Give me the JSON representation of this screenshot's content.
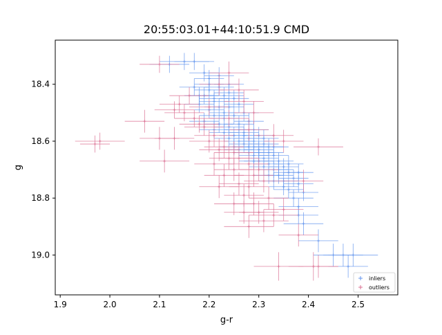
{
  "chart_data": {
    "type": "scatter",
    "title": "20:55:03.01+44:10:51.9 CMD",
    "xlabel": "g-r",
    "ylabel": "g",
    "xlim": [
      1.89,
      2.58
    ],
    "ylim": [
      19.14,
      18.245
    ],
    "y_inverted": true,
    "grid": false,
    "legend_placement": "lower right",
    "x_ticks": [
      1.9,
      2.0,
      2.1,
      2.2,
      2.3,
      2.4,
      2.5
    ],
    "x_tick_labels": [
      "1.9",
      "2.0",
      "2.1",
      "2.2",
      "2.3",
      "2.4",
      "2.5"
    ],
    "y_ticks": [
      18.4,
      18.6,
      18.8,
      19.0
    ],
    "y_tick_labels": [
      "18.4",
      "18.6",
      "18.8",
      "19.0"
    ],
    "series": [
      {
        "name": "inliers",
        "color": "#6495ED",
        "marker": "+",
        "errorbars": true,
        "points": [
          [
            2.15,
            18.32,
            0.05,
            0.03
          ],
          [
            2.17,
            18.32,
            0.04,
            0.03
          ],
          [
            2.12,
            18.33,
            0.04,
            0.03
          ],
          [
            2.19,
            18.36,
            0.03,
            0.03
          ],
          [
            2.2,
            18.38,
            0.03,
            0.03
          ],
          [
            2.22,
            18.37,
            0.03,
            0.03
          ],
          [
            2.17,
            18.41,
            0.03,
            0.03
          ],
          [
            2.2,
            18.42,
            0.03,
            0.03
          ],
          [
            2.22,
            18.41,
            0.03,
            0.03
          ],
          [
            2.24,
            18.4,
            0.03,
            0.03
          ],
          [
            2.19,
            18.44,
            0.03,
            0.03
          ],
          [
            2.21,
            18.45,
            0.03,
            0.03
          ],
          [
            2.23,
            18.44,
            0.04,
            0.03
          ],
          [
            2.25,
            18.45,
            0.03,
            0.03
          ],
          [
            2.18,
            18.47,
            0.03,
            0.03
          ],
          [
            2.22,
            18.48,
            0.03,
            0.03
          ],
          [
            2.2,
            18.49,
            0.03,
            0.03
          ],
          [
            2.24,
            18.48,
            0.03,
            0.03
          ],
          [
            2.26,
            18.47,
            0.03,
            0.03
          ],
          [
            2.21,
            18.51,
            0.03,
            0.03
          ],
          [
            2.23,
            18.52,
            0.03,
            0.03
          ],
          [
            2.25,
            18.51,
            0.03,
            0.03
          ],
          [
            2.27,
            18.5,
            0.03,
            0.03
          ],
          [
            2.19,
            18.53,
            0.03,
            0.03
          ],
          [
            2.22,
            18.54,
            0.03,
            0.03
          ],
          [
            2.24,
            18.55,
            0.03,
            0.03
          ],
          [
            2.26,
            18.54,
            0.03,
            0.03
          ],
          [
            2.28,
            18.53,
            0.03,
            0.03
          ],
          [
            2.21,
            18.56,
            0.03,
            0.03
          ],
          [
            2.23,
            18.57,
            0.03,
            0.03
          ],
          [
            2.25,
            18.58,
            0.03,
            0.03
          ],
          [
            2.27,
            18.57,
            0.03,
            0.03
          ],
          [
            2.29,
            18.56,
            0.03,
            0.03
          ],
          [
            2.24,
            18.59,
            0.03,
            0.03
          ],
          [
            2.26,
            18.6,
            0.03,
            0.03
          ],
          [
            2.28,
            18.59,
            0.03,
            0.03
          ],
          [
            2.3,
            18.58,
            0.03,
            0.03
          ],
          [
            2.27,
            18.61,
            0.03,
            0.03
          ],
          [
            2.29,
            18.62,
            0.03,
            0.03
          ],
          [
            2.31,
            18.61,
            0.03,
            0.03
          ],
          [
            2.26,
            18.63,
            0.03,
            0.03
          ],
          [
            2.28,
            18.64,
            0.03,
            0.03
          ],
          [
            2.3,
            18.63,
            0.03,
            0.03
          ],
          [
            2.32,
            18.62,
            0.03,
            0.03
          ],
          [
            2.29,
            18.65,
            0.03,
            0.03
          ],
          [
            2.31,
            18.66,
            0.03,
            0.03
          ],
          [
            2.33,
            18.65,
            0.03,
            0.03
          ],
          [
            2.3,
            18.67,
            0.03,
            0.03
          ],
          [
            2.32,
            18.68,
            0.03,
            0.03
          ],
          [
            2.34,
            18.67,
            0.03,
            0.03
          ],
          [
            2.31,
            18.69,
            0.03,
            0.03
          ],
          [
            2.33,
            18.7,
            0.03,
            0.03
          ],
          [
            2.35,
            18.69,
            0.03,
            0.03
          ],
          [
            2.36,
            18.71,
            0.03,
            0.03
          ],
          [
            2.34,
            18.72,
            0.03,
            0.03
          ],
          [
            2.37,
            18.73,
            0.03,
            0.03
          ],
          [
            2.35,
            18.74,
            0.03,
            0.03
          ],
          [
            2.38,
            18.75,
            0.03,
            0.03
          ],
          [
            2.36,
            18.77,
            0.03,
            0.03
          ],
          [
            2.39,
            18.78,
            0.03,
            0.03
          ],
          [
            2.37,
            18.8,
            0.04,
            0.03
          ],
          [
            2.38,
            18.83,
            0.04,
            0.03
          ],
          [
            2.38,
            18.86,
            0.04,
            0.03
          ],
          [
            2.39,
            18.89,
            0.04,
            0.04
          ],
          [
            2.42,
            18.95,
            0.04,
            0.04
          ],
          [
            2.45,
            19.0,
            0.04,
            0.04
          ],
          [
            2.47,
            19.0,
            0.04,
            0.04
          ],
          [
            2.49,
            19.0,
            0.05,
            0.04
          ],
          [
            2.48,
            19.04,
            0.04,
            0.04
          ],
          [
            2.28,
            18.62,
            0.03,
            0.03
          ],
          [
            2.29,
            18.6,
            0.03,
            0.03
          ],
          [
            2.3,
            18.64,
            0.03,
            0.03
          ],
          [
            2.27,
            18.58,
            0.03,
            0.03
          ],
          [
            2.31,
            18.59,
            0.03,
            0.03
          ],
          [
            2.32,
            18.64,
            0.03,
            0.03
          ],
          [
            2.33,
            18.62,
            0.03,
            0.03
          ],
          [
            2.25,
            18.62,
            0.03,
            0.03
          ],
          [
            2.23,
            18.5,
            0.03,
            0.03
          ],
          [
            2.21,
            18.46,
            0.03,
            0.03
          ],
          [
            2.24,
            18.43,
            0.03,
            0.03
          ],
          [
            2.2,
            18.4,
            0.03,
            0.03
          ],
          [
            2.18,
            18.44,
            0.03,
            0.03
          ],
          [
            2.26,
            18.56,
            0.03,
            0.03
          ],
          [
            2.29,
            18.67,
            0.03,
            0.03
          ],
          [
            2.34,
            18.7,
            0.03,
            0.03
          ],
          [
            2.36,
            18.68,
            0.03,
            0.03
          ],
          [
            2.32,
            18.72,
            0.03,
            0.03
          ],
          [
            2.35,
            18.76,
            0.03,
            0.03
          ],
          [
            2.33,
            18.74,
            0.03,
            0.03
          ],
          [
            2.38,
            18.71,
            0.03,
            0.03
          ]
        ]
      },
      {
        "name": "outliers",
        "color": "#DB7093",
        "marker": "+",
        "errorbars": true,
        "points": [
          [
            1.98,
            18.6,
            0.05,
            0.03
          ],
          [
            1.97,
            18.61,
            0.03,
            0.03
          ],
          [
            2.07,
            18.53,
            0.04,
            0.04
          ],
          [
            2.1,
            18.59,
            0.04,
            0.04
          ],
          [
            2.11,
            18.67,
            0.05,
            0.04
          ],
          [
            2.13,
            18.59,
            0.04,
            0.04
          ],
          [
            2.1,
            18.33,
            0.04,
            0.03
          ],
          [
            2.13,
            18.49,
            0.04,
            0.03
          ],
          [
            2.15,
            18.5,
            0.04,
            0.03
          ],
          [
            2.17,
            18.52,
            0.04,
            0.03
          ],
          [
            2.14,
            18.47,
            0.04,
            0.03
          ],
          [
            2.16,
            18.44,
            0.04,
            0.03
          ],
          [
            2.19,
            18.55,
            0.04,
            0.03
          ],
          [
            2.2,
            18.6,
            0.04,
            0.04
          ],
          [
            2.22,
            18.63,
            0.04,
            0.04
          ],
          [
            2.21,
            18.68,
            0.04,
            0.04
          ],
          [
            2.23,
            18.72,
            0.04,
            0.04
          ],
          [
            2.24,
            18.66,
            0.04,
            0.04
          ],
          [
            2.25,
            18.7,
            0.04,
            0.04
          ],
          [
            2.26,
            18.75,
            0.04,
            0.04
          ],
          [
            2.27,
            18.79,
            0.04,
            0.04
          ],
          [
            2.28,
            18.76,
            0.04,
            0.04
          ],
          [
            2.29,
            18.82,
            0.04,
            0.04
          ],
          [
            2.3,
            18.85,
            0.04,
            0.04
          ],
          [
            2.31,
            18.88,
            0.05,
            0.04
          ],
          [
            2.27,
            18.85,
            0.04,
            0.04
          ],
          [
            2.25,
            18.82,
            0.04,
            0.04
          ],
          [
            2.28,
            18.9,
            0.05,
            0.04
          ],
          [
            2.32,
            18.8,
            0.04,
            0.04
          ],
          [
            2.33,
            18.86,
            0.05,
            0.04
          ],
          [
            2.35,
            18.84,
            0.04,
            0.04
          ],
          [
            2.34,
            19.04,
            0.05,
            0.05
          ],
          [
            2.41,
            19.04,
            0.05,
            0.05
          ],
          [
            2.42,
            19.04,
            0.04,
            0.04
          ],
          [
            2.42,
            18.62,
            0.05,
            0.03
          ],
          [
            2.39,
            18.74,
            0.04,
            0.04
          ],
          [
            2.38,
            18.93,
            0.04,
            0.04
          ],
          [
            2.22,
            18.4,
            0.04,
            0.04
          ],
          [
            2.24,
            18.36,
            0.04,
            0.04
          ],
          [
            2.26,
            18.42,
            0.04,
            0.04
          ],
          [
            2.27,
            18.46,
            0.04,
            0.04
          ],
          [
            2.29,
            18.5,
            0.04,
            0.04
          ],
          [
            2.21,
            18.58,
            0.04,
            0.04
          ],
          [
            2.23,
            18.62,
            0.04,
            0.04
          ],
          [
            2.26,
            18.66,
            0.04,
            0.04
          ],
          [
            2.3,
            18.7,
            0.04,
            0.04
          ],
          [
            2.31,
            18.74,
            0.04,
            0.04
          ],
          [
            2.28,
            18.68,
            0.04,
            0.04
          ],
          [
            2.18,
            18.54,
            0.04,
            0.03
          ],
          [
            2.2,
            18.48,
            0.04,
            0.03
          ],
          [
            2.24,
            18.52,
            0.04,
            0.03
          ],
          [
            2.33,
            18.58,
            0.04,
            0.04
          ],
          [
            2.35,
            18.6,
            0.04,
            0.04
          ],
          [
            2.28,
            18.56,
            0.04,
            0.04
          ],
          [
            2.22,
            18.76,
            0.04,
            0.04
          ],
          [
            2.25,
            18.64,
            0.04,
            0.04
          ],
          [
            2.29,
            18.72,
            0.04,
            0.04
          ]
        ]
      }
    ]
  }
}
